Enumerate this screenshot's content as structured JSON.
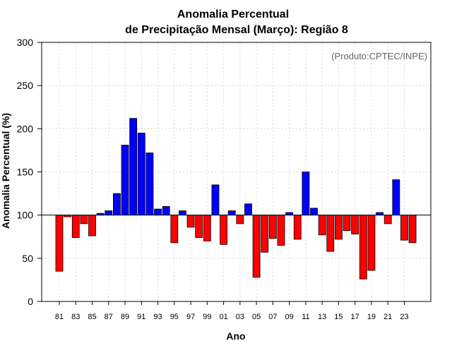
{
  "chart_data": {
    "type": "bar",
    "title": "Anomalia Percentual",
    "subtitle": "de Precipitação Mensal (Março): Região 8",
    "credit": "(Produto:CPTEC/INPE)",
    "xlabel": "Ano",
    "ylabel": "Anomalia Percentual (%)",
    "ylim": [
      0,
      300
    ],
    "yticks": [
      0,
      50,
      100,
      150,
      200,
      250,
      300
    ],
    "baseline": 100,
    "grid": true,
    "colors": {
      "above": "#0000ff",
      "below": "#ff0000",
      "outline": "#000000"
    },
    "categories": [
      "81",
      "82",
      "83",
      "84",
      "85",
      "86",
      "87",
      "88",
      "89",
      "90",
      "91",
      "92",
      "93",
      "94",
      "95",
      "96",
      "97",
      "98",
      "99",
      "00",
      "01",
      "02",
      "03",
      "04",
      "05",
      "06",
      "07",
      "08",
      "09",
      "10",
      "11",
      "12",
      "13",
      "14",
      "15",
      "16",
      "17",
      "18",
      "19",
      "20",
      "21",
      "22",
      "23",
      "24"
    ],
    "xtick_labels": [
      "81",
      "83",
      "85",
      "87",
      "89",
      "91",
      "93",
      "95",
      "97",
      "99",
      "01",
      "03",
      "05",
      "07",
      "09",
      "11",
      "13",
      "15",
      "17",
      "19",
      "21",
      "23"
    ],
    "values": [
      35,
      98,
      74,
      90,
      76,
      102,
      105,
      125,
      181,
      212,
      195,
      172,
      107,
      110,
      68,
      105,
      86,
      74,
      70,
      135,
      66,
      105,
      90,
      113,
      28,
      57,
      73,
      65,
      103,
      72,
      150,
      108,
      77,
      58,
      72,
      82,
      78,
      26,
      36,
      103,
      90,
      141,
      71,
      68
    ]
  }
}
